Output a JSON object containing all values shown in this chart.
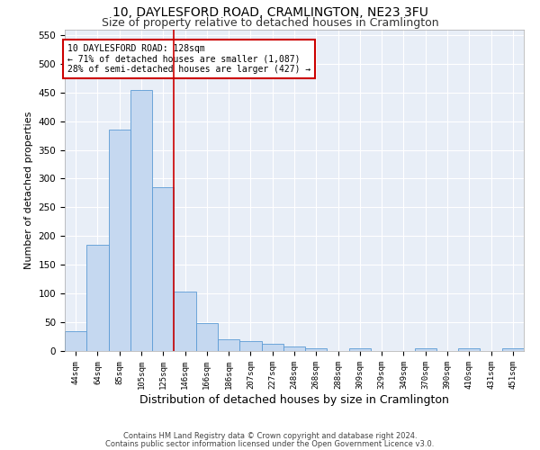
{
  "title1": "10, DAYLESFORD ROAD, CRAMLINGTON, NE23 3FU",
  "title2": "Size of property relative to detached houses in Cramlington",
  "xlabel": "Distribution of detached houses by size in Cramlington",
  "ylabel": "Number of detached properties",
  "footnote1": "Contains HM Land Registry data © Crown copyright and database right 2024.",
  "footnote2": "Contains public sector information licensed under the Open Government Licence v3.0.",
  "bar_labels": [
    "44sqm",
    "64sqm",
    "85sqm",
    "105sqm",
    "125sqm",
    "146sqm",
    "166sqm",
    "186sqm",
    "207sqm",
    "227sqm",
    "248sqm",
    "268sqm",
    "288sqm",
    "309sqm",
    "329sqm",
    "349sqm",
    "370sqm",
    "390sqm",
    "410sqm",
    "431sqm",
    "451sqm"
  ],
  "bar_values": [
    35,
    185,
    385,
    455,
    285,
    103,
    48,
    20,
    18,
    12,
    8,
    4,
    0,
    5,
    0,
    0,
    4,
    0,
    4,
    0,
    4
  ],
  "bar_color": "#c5d8f0",
  "bar_edge_color": "#5b9bd5",
  "vline_color": "#cc0000",
  "annotation_text": "10 DAYLESFORD ROAD: 128sqm\n← 71% of detached houses are smaller (1,087)\n28% of semi-detached houses are larger (427) →",
  "annotation_box_color": "#ffffff",
  "annotation_box_edge_color": "#cc0000",
  "ylim": [
    0,
    560
  ],
  "yticks": [
    0,
    50,
    100,
    150,
    200,
    250,
    300,
    350,
    400,
    450,
    500,
    550
  ],
  "plot_bg_color": "#e8eef7",
  "fig_bg_color": "#ffffff",
  "grid_color": "#ffffff",
  "title1_fontsize": 10,
  "title2_fontsize": 9,
  "xlabel_fontsize": 9,
  "ylabel_fontsize": 8
}
